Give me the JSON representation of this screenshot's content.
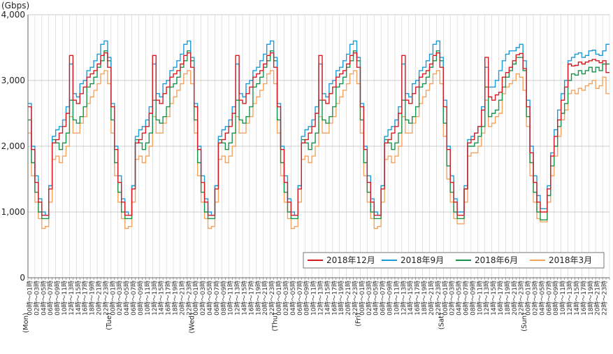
{
  "chart_data": {
    "type": "line",
    "step": true,
    "unit_label": "(Gbps)",
    "ylim": [
      0,
      4000
    ],
    "y_ticks": [
      0,
      1000,
      2000,
      3000,
      4000
    ],
    "y_tick_labels": [
      "0",
      "1,000",
      "2,000",
      "3,000",
      "4,000"
    ],
    "grid": "vertical-and-horizontal",
    "legend_position": "lower-right",
    "days": [
      "(Mon)",
      "(Tue)",
      "(Wed)",
      "(Thu)",
      "(Fri)",
      "(Sat)",
      "(Sun)"
    ],
    "hour_labels": [
      "00時～01時",
      "01時～02時",
      "02時～03時",
      "03時～04時",
      "04時～05時",
      "05時～06時",
      "06時～07時",
      "07時～08時",
      "08時～09時",
      "09時～10時",
      "10時～11時",
      "11時～12時",
      "12時～13時",
      "13時～14時",
      "14時～15時",
      "15時～16時",
      "16時～17時",
      "17時～18時",
      "18時～19時",
      "19時～20時",
      "20時～21時",
      "21時～22時",
      "22時～23時",
      "23時～24時"
    ],
    "hour_label_interval": 2,
    "series": [
      {
        "name": "2018年12月",
        "color": "#d71920",
        "weekday": [
          2600,
          1950,
          1450,
          1150,
          950,
          950,
          1350,
          2050,
          2100,
          2200,
          2300,
          2500,
          3380,
          2700,
          2650,
          2800,
          2900,
          3050,
          3100,
          3150,
          3250,
          3380,
          3420,
          3200
        ],
        "saturday": [
          2600,
          1950,
          1450,
          1150,
          950,
          950,
          1350,
          2050,
          2100,
          2200,
          2300,
          2550,
          3350,
          2750,
          2700,
          2780,
          2820,
          3050,
          3120,
          3200,
          3300,
          3390,
          3410,
          3180
        ],
        "sunday": [
          2600,
          1900,
          1450,
          1150,
          1000,
          1000,
          1350,
          1850,
          2150,
          2400,
          2700,
          2900,
          3250,
          3220,
          3230,
          3280,
          3250,
          3280,
          3300,
          3320,
          3300,
          3270,
          3300,
          3120
        ]
      },
      {
        "name": "2018年9月",
        "color": "#1c9ad6",
        "weekday": [
          2650,
          2000,
          1550,
          1200,
          1000,
          950,
          1400,
          2150,
          2250,
          2300,
          2400,
          2600,
          3250,
          2800,
          2750,
          2950,
          3000,
          3150,
          3200,
          3300,
          3400,
          3550,
          3600,
          3350
        ],
        "saturday": [
          2700,
          2000,
          1550,
          1200,
          1000,
          1000,
          1400,
          2100,
          2150,
          2200,
          2300,
          2600,
          3200,
          2900,
          2900,
          3000,
          3150,
          3300,
          3400,
          3450,
          3450,
          3500,
          3550,
          3300
        ],
        "sunday": [
          2700,
          2000,
          1550,
          1250,
          1050,
          1050,
          1400,
          1900,
          2250,
          2550,
          2800,
          3000,
          3300,
          3350,
          3400,
          3420,
          3350,
          3380,
          3450,
          3460,
          3400,
          3380,
          3450,
          3550
        ]
      },
      {
        "name": "2018年6月",
        "color": "#16924a",
        "weekday": [
          2400,
          1750,
          1300,
          1000,
          900,
          900,
          1400,
          2100,
          2050,
          1950,
          2050,
          2200,
          2700,
          2400,
          2350,
          2450,
          2600,
          2900,
          2950,
          3050,
          3200,
          3300,
          3450,
          3300
        ],
        "saturday": [
          2350,
          1700,
          1300,
          1000,
          900,
          900,
          1350,
          2000,
          2000,
          2050,
          2150,
          2300,
          2900,
          2450,
          2500,
          2550,
          2700,
          2900,
          3050,
          3150,
          3250,
          3350,
          3350,
          3150
        ],
        "sunday": [
          2450,
          1750,
          1300,
          1000,
          880,
          880,
          1250,
          1700,
          2000,
          2300,
          2500,
          2650,
          3000,
          3100,
          3080,
          3150,
          3100,
          3150,
          3200,
          3130,
          3200,
          3150,
          3250,
          3250
        ]
      },
      {
        "name": "2018年3月",
        "color": "#f4a35f",
        "weekday": [
          2200,
          1550,
          1150,
          900,
          750,
          780,
          1150,
          1800,
          1850,
          1750,
          1850,
          2000,
          2450,
          2200,
          2200,
          2350,
          2450,
          2650,
          2750,
          2850,
          2950,
          3100,
          3150,
          2950
        ],
        "saturday": [
          2150,
          1500,
          1150,
          900,
          820,
          820,
          1150,
          1850,
          1900,
          1900,
          2000,
          2200,
          2700,
          2300,
          2350,
          2450,
          2500,
          2800,
          2900,
          2950,
          3000,
          3100,
          3050,
          2850
        ],
        "sunday": [
          2300,
          1550,
          1150,
          900,
          850,
          850,
          1150,
          1550,
          1850,
          2150,
          2400,
          2550,
          2800,
          2850,
          2800,
          2880,
          2850,
          2920,
          2950,
          3000,
          2880,
          2920,
          3050,
          2800
        ]
      }
    ]
  }
}
